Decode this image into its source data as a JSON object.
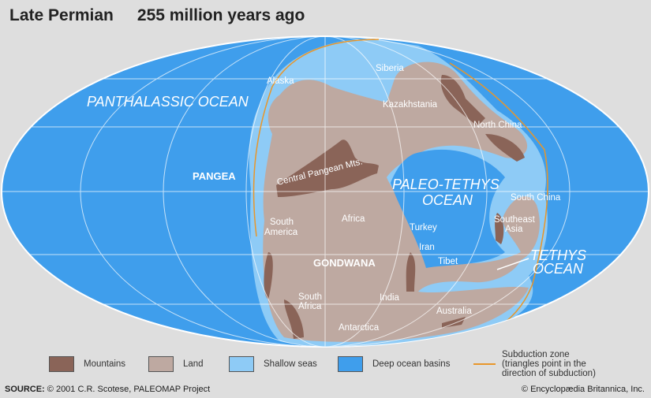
{
  "title": {
    "period": "Late Permian",
    "age": "255 million years ago"
  },
  "labels": {
    "panthalassic": "PANTHALASSIC OCEAN",
    "pangea": "PANGEA",
    "gondwana": "GONDWANA",
    "central_pangean": "Central Pangean Mts.",
    "paleo_tethys_1": "PALEO-TETHYS",
    "paleo_tethys_2": "OCEAN",
    "tethys_1": "TETHYS",
    "tethys_2": "OCEAN",
    "alaska": "Alaska",
    "siberia": "Siberia",
    "kazakhstania": "Kazakhstania",
    "north_china": "North China",
    "south_china": "South China",
    "southeast_asia_1": "Southeast",
    "southeast_asia_2": "Asia",
    "south_america_1": "South",
    "south_america_2": "America",
    "africa": "Africa",
    "turkey": "Turkey",
    "iran": "Iran",
    "tibet": "Tibet",
    "india": "India",
    "south_africa_1": "South",
    "south_africa_2": "Africa",
    "australia": "Australia",
    "antarctica": "Antarctica"
  },
  "legend": {
    "mountains": {
      "label": "Mountains",
      "color": "#8a6458"
    },
    "land": {
      "label": "Land",
      "color": "#bea9a1"
    },
    "shallow": {
      "label": "Shallow seas",
      "color": "#8ecbf6"
    },
    "deep": {
      "label": "Deep ocean basins",
      "color": "#3f9eec"
    },
    "subduction": {
      "line1": "Subduction zone",
      "line2": "(triangles point in the",
      "line3": "direction of subduction)",
      "color": "#e8962a"
    }
  },
  "footer": {
    "source_label": "SOURCE:",
    "source_text": " © 2001 C.R. Scotese, PALEOMAP Project",
    "copyright": "© Encyclopædia Britannica, Inc."
  }
}
